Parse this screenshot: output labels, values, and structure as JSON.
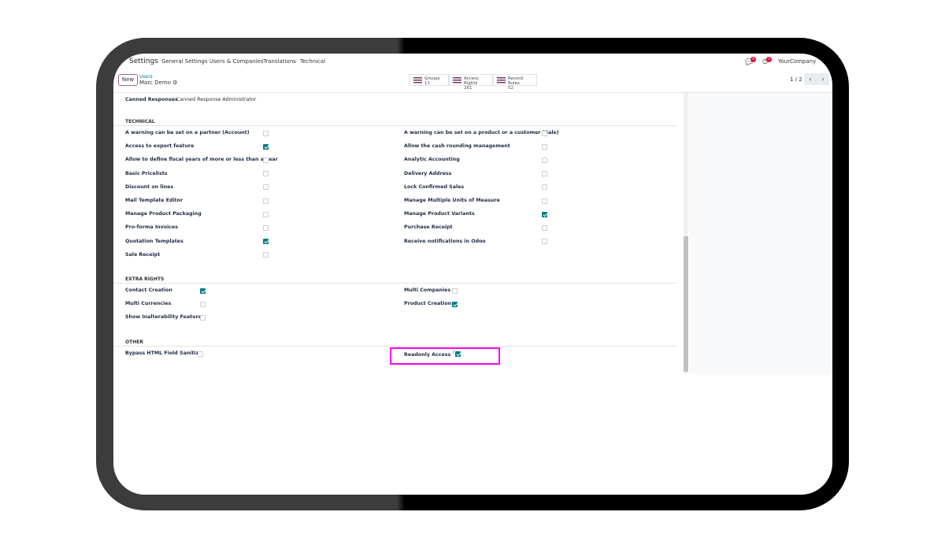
{
  "topbar": {
    "app": "Settings",
    "menu": [
      "General Settings",
      "Users & Companies",
      "Translations",
      "Technical"
    ],
    "messages_badge": "4",
    "activity_badge": "3",
    "company": "YourCompany"
  },
  "control": {
    "new_label": "New",
    "breadcrumb": "Users",
    "record": "Marc Demo",
    "pager": "1 / 2",
    "smart_buttons": [
      {
        "label": "Groups",
        "value": "11"
      },
      {
        "label": "Access Rights",
        "value": "261"
      },
      {
        "label": "Record Rules",
        "value": "52"
      }
    ]
  },
  "canned": {
    "label": "Canned Responses",
    "value": "Canned Response Administrator"
  },
  "technical": {
    "title": "TECHNICAL",
    "left": [
      {
        "label": "A warning can be set on a partner (Account)",
        "checked": false
      },
      {
        "label": "Access to export feature",
        "checked": true
      },
      {
        "label": "Allow to define fiscal years of more or less than a year",
        "checked": false
      },
      {
        "label": "Basic Pricelists",
        "checked": false
      },
      {
        "label": "Discount on lines",
        "checked": false
      },
      {
        "label": "Mail Template Editor",
        "checked": false
      },
      {
        "label": "Manage Product Packaging",
        "checked": false
      },
      {
        "label": "Pro-forma Invoices",
        "checked": false
      },
      {
        "label": "Quotation Templates",
        "checked": true
      },
      {
        "label": "Sale Receipt",
        "checked": false
      }
    ],
    "right": [
      {
        "label": "A warning can be set on a product or a customer (Sale)",
        "checked": false
      },
      {
        "label": "Allow the cash rounding management",
        "checked": false
      },
      {
        "label": "Analytic Accounting",
        "checked": false
      },
      {
        "label": "Delivery Address",
        "checked": false
      },
      {
        "label": "Lock Confirmed Sales",
        "checked": false
      },
      {
        "label": "Manage Multiple Units of Measure",
        "checked": false
      },
      {
        "label": "Manage Product Variants",
        "checked": true
      },
      {
        "label": "Purchase Receipt",
        "checked": false
      },
      {
        "label": "Receive notifications in Odoo",
        "checked": false
      }
    ]
  },
  "extra": {
    "title": "EXTRA RIGHTS",
    "left": [
      {
        "label": "Contact Creation",
        "checked": true
      },
      {
        "label": "Multi Currencies",
        "checked": false
      },
      {
        "label": "Show Inalterability Features",
        "checked": false
      }
    ],
    "right": [
      {
        "label": "Multi Companies",
        "checked": false
      },
      {
        "label": "Product Creation",
        "checked": true
      }
    ]
  },
  "other": {
    "title": "OTHER",
    "left": [
      {
        "label": "Bypass HTML Field Sanitize",
        "checked": false
      }
    ],
    "right": [
      {
        "label": "Readonly Access",
        "help": "?",
        "checked": true
      }
    ]
  },
  "colors": {
    "accent": "#017e84",
    "brand": "#71385f",
    "highlight": "#ff00ff"
  }
}
